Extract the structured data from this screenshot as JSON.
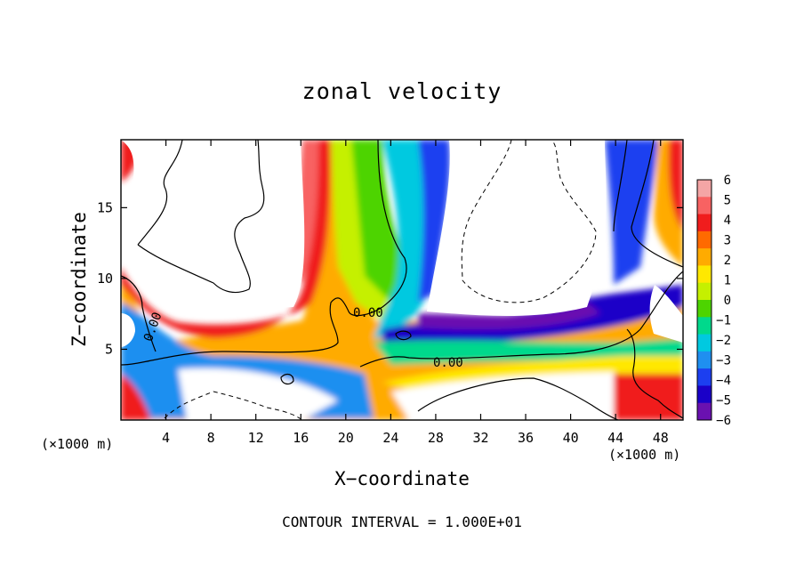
{
  "chart_data": {
    "type": "heatmap",
    "title": "zonal velocity",
    "xlabel": "X−coordinate",
    "ylabel": "Z−coordinate",
    "x_unit_left": "(×1000 m)",
    "x_unit_right": "(×1000 m)",
    "annotation": "CONTOUR INTERVAL = 1.000E+01",
    "xlim": [
      0,
      50
    ],
    "ylim": [
      0,
      19.8
    ],
    "x_ticks": [
      4,
      8,
      12,
      16,
      20,
      24,
      28,
      32,
      36,
      40,
      44,
      48
    ],
    "y_ticks": [
      5,
      10,
      15
    ],
    "colorbar": {
      "levels": [
        6,
        5,
        4,
        3,
        2,
        1,
        0,
        -1,
        -2,
        -3,
        -4,
        -5,
        -6
      ],
      "labels": [
        "6",
        "5",
        "4",
        "3",
        "2",
        "1",
        "0",
        "−1",
        "−2",
        "−3",
        "−4",
        "−5",
        "−6"
      ],
      "colors": [
        "#f4a5a5",
        "#f86262",
        "#f01d1d",
        "#ff6a00",
        "#ffab00",
        "#ffe800",
        "#c5f000",
        "#4dd400",
        "#00d98c",
        "#00c9e0",
        "#1f8ff0",
        "#1c3ff0",
        "#1a00c8",
        "#6a11b0"
      ]
    },
    "contour_labels": [
      "0.00",
      "0.00",
      "0.00"
    ]
  }
}
